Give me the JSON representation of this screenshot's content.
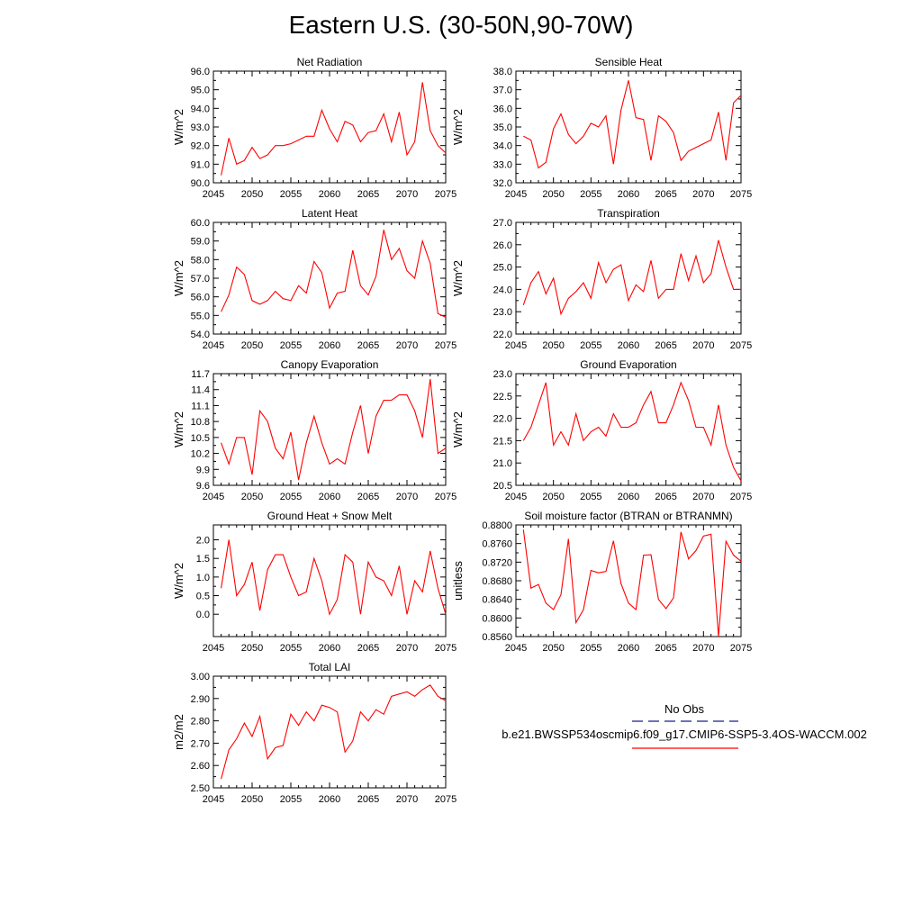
{
  "title": "Eastern U.S. (30-50N,90-70W)",
  "legend": {
    "obs_label": "No Obs",
    "model_label": "b.e21.BWSSP534oscmip6.f09_g17.CMIP6-SSP5-3.4OS-WACCM.002",
    "obs_color": "#1a1a99",
    "model_color": "#ff0000"
  },
  "chart_data": [
    {
      "type": "line",
      "title": "Net Radiation",
      "ylabel": "W/m^2",
      "xlim": [
        2045,
        2075
      ],
      "ylim": [
        90.0,
        96.0
      ],
      "xticks": [
        "2045",
        "2050",
        "2055",
        "2060",
        "2065",
        "2070",
        "2075"
      ],
      "yticks": [
        "90.0",
        "91.0",
        "92.0",
        "93.0",
        "94.0",
        "95.0",
        "96.0"
      ],
      "x": [
        2046,
        2047,
        2048,
        2049,
        2050,
        2051,
        2052,
        2053,
        2054,
        2055,
        2056,
        2057,
        2058,
        2059,
        2060,
        2061,
        2062,
        2063,
        2064,
        2065,
        2066,
        2067,
        2068,
        2069,
        2070,
        2071,
        2072,
        2073,
        2074,
        2075
      ],
      "values": [
        90.4,
        92.4,
        91.0,
        91.2,
        91.9,
        91.3,
        91.5,
        92.0,
        92.0,
        92.1,
        92.3,
        92.5,
        92.5,
        93.9,
        92.9,
        92.2,
        93.3,
        93.1,
        92.2,
        92.7,
        92.8,
        93.7,
        92.2,
        93.8,
        91.5,
        92.2,
        95.4,
        92.8,
        92.0,
        91.6
      ],
      "series_color": "#ff0000"
    },
    {
      "type": "line",
      "title": "Sensible Heat",
      "ylabel": "W/m^2",
      "xlim": [
        2045,
        2075
      ],
      "ylim": [
        32.0,
        38.0
      ],
      "xticks": [
        "2045",
        "2050",
        "2055",
        "2060",
        "2065",
        "2070",
        "2075"
      ],
      "yticks": [
        "32.0",
        "33.0",
        "34.0",
        "35.0",
        "36.0",
        "37.0",
        "38.0"
      ],
      "x": [
        2046,
        2047,
        2048,
        2049,
        2050,
        2051,
        2052,
        2053,
        2054,
        2055,
        2056,
        2057,
        2058,
        2059,
        2060,
        2061,
        2062,
        2063,
        2064,
        2065,
        2066,
        2067,
        2068,
        2069,
        2070,
        2071,
        2072,
        2073,
        2074,
        2075
      ],
      "values": [
        34.5,
        34.3,
        32.8,
        33.1,
        34.9,
        35.7,
        34.6,
        34.1,
        34.5,
        35.2,
        35.0,
        35.6,
        33.0,
        35.9,
        37.5,
        35.5,
        35.4,
        33.2,
        35.6,
        35.3,
        34.7,
        33.2,
        33.7,
        33.9,
        34.1,
        34.3,
        35.8,
        33.2,
        36.3,
        36.7
      ],
      "series_color": "#ff0000"
    },
    {
      "type": "line",
      "title": "Latent Heat",
      "ylabel": "W/m^2",
      "xlim": [
        2045,
        2075
      ],
      "ylim": [
        54.0,
        60.0
      ],
      "xticks": [
        "2045",
        "2050",
        "2055",
        "2060",
        "2065",
        "2070",
        "2075"
      ],
      "yticks": [
        "54.0",
        "55.0",
        "56.0",
        "57.0",
        "58.0",
        "59.0",
        "60.0"
      ],
      "x": [
        2046,
        2047,
        2048,
        2049,
        2050,
        2051,
        2052,
        2053,
        2054,
        2055,
        2056,
        2057,
        2058,
        2059,
        2060,
        2061,
        2062,
        2063,
        2064,
        2065,
        2066,
        2067,
        2068,
        2069,
        2070,
        2071,
        2072,
        2073,
        2074,
        2075
      ],
      "values": [
        55.2,
        56.1,
        57.6,
        57.2,
        55.8,
        55.6,
        55.8,
        56.3,
        55.9,
        55.8,
        56.6,
        56.2,
        57.9,
        57.3,
        55.4,
        56.2,
        56.3,
        58.5,
        56.6,
        56.1,
        57.1,
        59.6,
        58.0,
        58.6,
        57.4,
        57.0,
        59.0,
        57.8,
        55.1,
        54.9
      ],
      "series_color": "#ff0000"
    },
    {
      "type": "line",
      "title": "Transpiration",
      "ylabel": "W/m^2",
      "xlim": [
        2045,
        2075
      ],
      "ylim": [
        22.0,
        27.0
      ],
      "xticks": [
        "2045",
        "2050",
        "2055",
        "2060",
        "2065",
        "2070",
        "2075"
      ],
      "yticks": [
        "22.0",
        "23.0",
        "24.0",
        "25.0",
        "26.0",
        "27.0"
      ],
      "x": [
        2046,
        2047,
        2048,
        2049,
        2050,
        2051,
        2052,
        2053,
        2054,
        2055,
        2056,
        2057,
        2058,
        2059,
        2060,
        2061,
        2062,
        2063,
        2064,
        2065,
        2066,
        2067,
        2068,
        2069,
        2070,
        2071,
        2072,
        2073,
        2074,
        2075
      ],
      "values": [
        23.3,
        24.3,
        24.8,
        23.8,
        24.5,
        22.9,
        23.6,
        23.9,
        24.3,
        23.6,
        25.2,
        24.3,
        24.9,
        25.1,
        23.5,
        24.2,
        23.9,
        25.3,
        23.6,
        24.0,
        24.0,
        25.6,
        24.4,
        25.5,
        24.3,
        24.7,
        26.2,
        25.0,
        24.0,
        24.0
      ],
      "series_color": "#ff0000"
    },
    {
      "type": "line",
      "title": "Canopy Evaporation",
      "ylabel": "W/m^2",
      "xlim": [
        2045,
        2075
      ],
      "ylim": [
        9.6,
        11.7
      ],
      "xticks": [
        "2045",
        "2050",
        "2055",
        "2060",
        "2065",
        "2070",
        "2075"
      ],
      "yticks": [
        "9.6",
        "9.9",
        "10.2",
        "10.5",
        "10.8",
        "11.1",
        "11.4",
        "11.7"
      ],
      "x": [
        2046,
        2047,
        2048,
        2049,
        2050,
        2051,
        2052,
        2053,
        2054,
        2055,
        2056,
        2057,
        2058,
        2059,
        2060,
        2061,
        2062,
        2063,
        2064,
        2065,
        2066,
        2067,
        2068,
        2069,
        2070,
        2071,
        2072,
        2073,
        2074,
        2075
      ],
      "values": [
        10.4,
        10.0,
        10.5,
        10.5,
        9.8,
        11.0,
        10.8,
        10.3,
        10.1,
        10.6,
        9.7,
        10.4,
        10.9,
        10.4,
        10.0,
        10.1,
        10.0,
        10.6,
        11.1,
        10.2,
        10.9,
        11.2,
        11.2,
        11.3,
        11.3,
        11.0,
        10.5,
        11.6,
        10.2,
        10.3
      ],
      "series_color": "#ff0000"
    },
    {
      "type": "line",
      "title": "Ground Evaporation",
      "ylabel": "W/m^2",
      "xlim": [
        2045,
        2075
      ],
      "ylim": [
        20.5,
        23.0
      ],
      "xticks": [
        "2045",
        "2050",
        "2055",
        "2060",
        "2065",
        "2070",
        "2075"
      ],
      "yticks": [
        "20.5",
        "21.0",
        "21.5",
        "22.0",
        "22.5",
        "23.0"
      ],
      "x": [
        2046,
        2047,
        2048,
        2049,
        2050,
        2051,
        2052,
        2053,
        2054,
        2055,
        2056,
        2057,
        2058,
        2059,
        2060,
        2061,
        2062,
        2063,
        2064,
        2065,
        2066,
        2067,
        2068,
        2069,
        2070,
        2071,
        2072,
        2073,
        2074,
        2075
      ],
      "values": [
        21.5,
        21.8,
        22.3,
        22.8,
        21.4,
        21.7,
        21.4,
        22.1,
        21.5,
        21.7,
        21.8,
        21.6,
        22.1,
        21.8,
        21.8,
        21.9,
        22.3,
        22.6,
        21.9,
        21.9,
        22.3,
        22.8,
        22.4,
        21.8,
        21.8,
        21.4,
        22.3,
        21.4,
        20.9,
        20.6
      ],
      "series_color": "#ff0000"
    },
    {
      "type": "line",
      "title": "Ground Heat + Snow Melt",
      "ylabel": "W/m^2",
      "xlim": [
        2045,
        2075
      ],
      "ylim": [
        -0.6,
        2.4
      ],
      "xticks": [
        "2045",
        "2050",
        "2055",
        "2060",
        "2065",
        "2070",
        "2075"
      ],
      "yticks": [
        "0.0",
        "0.5",
        "1.0",
        "1.5",
        "2.0"
      ],
      "x": [
        2046,
        2047,
        2048,
        2049,
        2050,
        2051,
        2052,
        2053,
        2054,
        2055,
        2056,
        2057,
        2058,
        2059,
        2060,
        2061,
        2062,
        2063,
        2064,
        2065,
        2066,
        2067,
        2068,
        2069,
        2070,
        2071,
        2072,
        2073,
        2074,
        2075
      ],
      "values": [
        0.7,
        2.0,
        0.5,
        0.8,
        1.4,
        0.1,
        1.2,
        1.6,
        1.6,
        1.0,
        0.5,
        0.6,
        1.5,
        0.9,
        0.0,
        0.4,
        1.6,
        1.4,
        0.0,
        1.4,
        1.0,
        0.9,
        0.5,
        1.3,
        0.0,
        0.9,
        0.6,
        1.7,
        0.7,
        0.0
      ],
      "series_color": "#ff0000"
    },
    {
      "type": "line",
      "title": "Soil moisture factor (BTRAN or BTRANMN)",
      "ylabel": "unitless",
      "xlim": [
        2045,
        2075
      ],
      "ylim": [
        0.856,
        0.88
      ],
      "xticks": [
        "2045",
        "2050",
        "2055",
        "2060",
        "2065",
        "2070",
        "2075"
      ],
      "yticks": [
        "0.8560",
        "0.8600",
        "0.8640",
        "0.8680",
        "0.8720",
        "0.8760",
        "0.8800"
      ],
      "x": [
        2046,
        2047,
        2048,
        2049,
        2050,
        2051,
        2052,
        2053,
        2054,
        2055,
        2056,
        2057,
        2058,
        2059,
        2060,
        2061,
        2062,
        2063,
        2064,
        2065,
        2066,
        2067,
        2068,
        2069,
        2070,
        2071,
        2072,
        2073,
        2074,
        2075
      ],
      "values": [
        0.879,
        0.8664,
        0.8672,
        0.8632,
        0.8618,
        0.865,
        0.877,
        0.859,
        0.8618,
        0.8702,
        0.8697,
        0.87,
        0.8766,
        0.8674,
        0.8632,
        0.8618,
        0.8735,
        0.8736,
        0.864,
        0.862,
        0.8643,
        0.8785,
        0.8727,
        0.8745,
        0.8776,
        0.878,
        0.856,
        0.8765,
        0.8735,
        0.8722
      ],
      "series_color": "#ff0000"
    },
    {
      "type": "line",
      "title": "Total LAI",
      "ylabel": "m2/m2",
      "xlim": [
        2045,
        2075
      ],
      "ylim": [
        2.5,
        3.0
      ],
      "xticks": [
        "2045",
        "2050",
        "2055",
        "2060",
        "2065",
        "2070",
        "2075"
      ],
      "yticks": [
        "2.50",
        "2.60",
        "2.70",
        "2.80",
        "2.90",
        "3.00"
      ],
      "x": [
        2046,
        2047,
        2048,
        2049,
        2050,
        2051,
        2052,
        2053,
        2054,
        2055,
        2056,
        2057,
        2058,
        2059,
        2060,
        2061,
        2062,
        2063,
        2064,
        2065,
        2066,
        2067,
        2068,
        2069,
        2070,
        2071,
        2072,
        2073,
        2074,
        2075
      ],
      "values": [
        2.54,
        2.67,
        2.72,
        2.79,
        2.73,
        2.82,
        2.63,
        2.68,
        2.69,
        2.83,
        2.78,
        2.84,
        2.8,
        2.87,
        2.86,
        2.84,
        2.66,
        2.71,
        2.84,
        2.8,
        2.85,
        2.83,
        2.91,
        2.92,
        2.93,
        2.91,
        2.94,
        2.96,
        2.91,
        2.89
      ],
      "series_color": "#ff0000"
    }
  ]
}
